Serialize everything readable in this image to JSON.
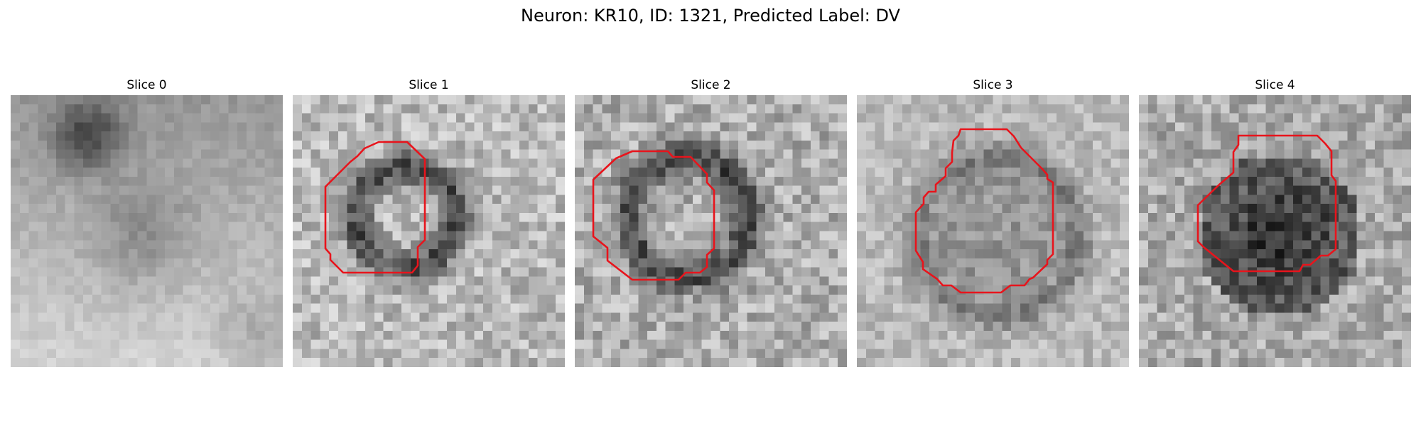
{
  "figure": {
    "title": "Neuron: KR10, ID: 1321, Predicted Label: DV"
  },
  "contour_color": "#e8141c",
  "slices": [
    {
      "label": "Slice 0",
      "has_contour": false
    },
    {
      "label": "Slice 1",
      "has_contour": true
    },
    {
      "label": "Slice 2",
      "has_contour": true
    },
    {
      "label": "Slice 3",
      "has_contour": true
    },
    {
      "label": "Slice 4",
      "has_contour": true
    }
  ]
}
